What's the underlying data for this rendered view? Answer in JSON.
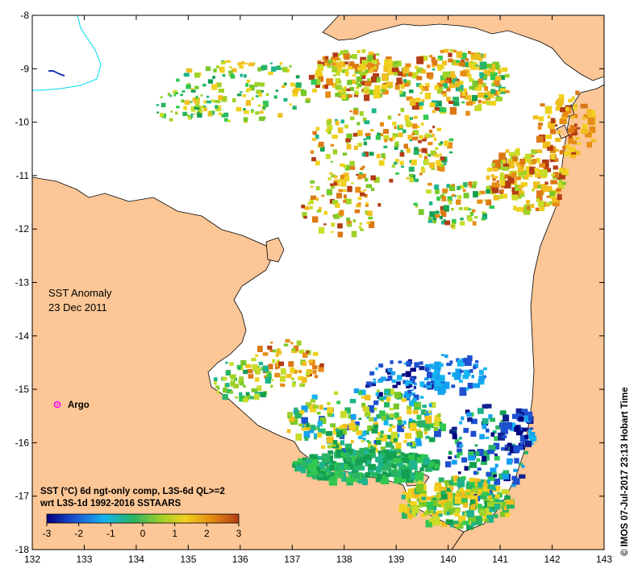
{
  "map": {
    "annotation_title": "SST Anomaly",
    "annotation_date": "23 Dec 2011",
    "marker_label": "Argo",
    "legend_line1": "SST (°C) 6d ngt-only comp, L3S-6d QL>=2",
    "legend_line2": "wrt L3S-1d 1992-2016 SSTAARS",
    "credit": "© IMOS 07-Jul-2017 23:13 Hobart Time",
    "colors": {
      "land": "#fcc696",
      "sea": "#ffffff",
      "coastline": "#000000",
      "river": "#00d8f0",
      "argo_marker": "#ff00ff"
    }
  },
  "axes": {
    "x_ticks": [
      "132",
      "133",
      "134",
      "135",
      "136",
      "137",
      "138",
      "139",
      "140",
      "141",
      "142",
      "143"
    ],
    "y_ticks": [
      "-8",
      "-9",
      "-10",
      "-11",
      "-12",
      "-13",
      "-14",
      "-15",
      "-16",
      "-17",
      "-18"
    ]
  },
  "colorbar": {
    "ticks": [
      "-3",
      "-2",
      "-1",
      "0",
      "1",
      "2",
      "3"
    ],
    "stops": [
      "#000080",
      "#1e50d0",
      "#14b4f0",
      "#28b464",
      "#a0d228",
      "#f0d21e",
      "#e68c14",
      "#b43c14"
    ]
  }
}
